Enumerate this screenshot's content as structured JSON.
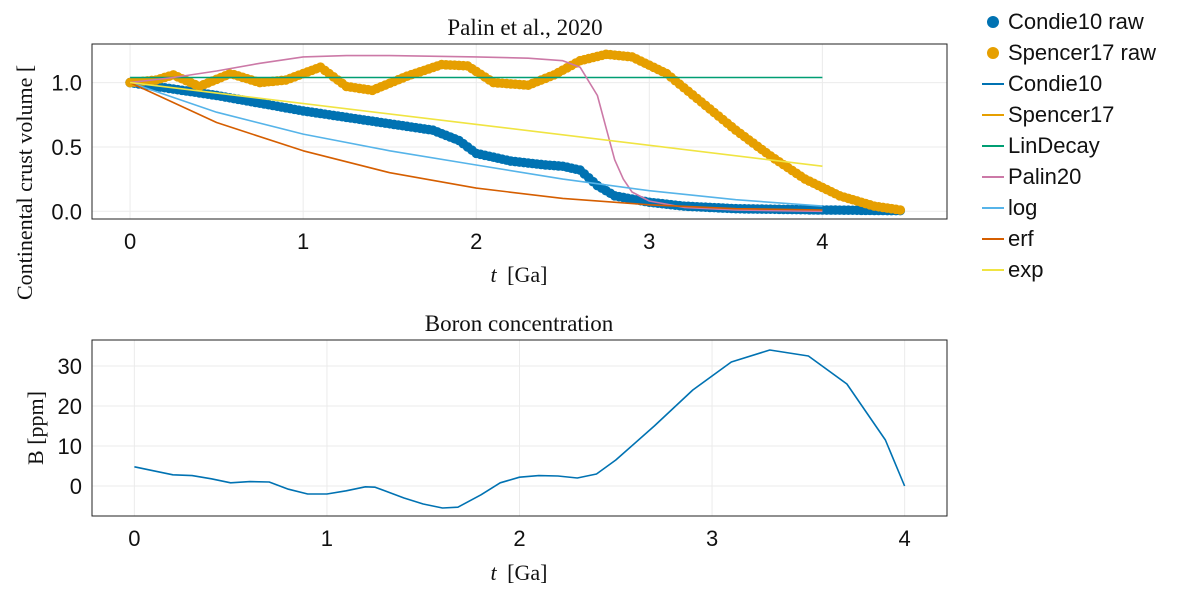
{
  "chart_data": [
    {
      "type": "line",
      "title": "Palin et al., 2020",
      "xlabel_var": "t",
      "xlabel_unit": "[Ga]",
      "ylabel": "Continental crust volume [",
      "xlim": [
        -0.22,
        4.72
      ],
      "ylim": [
        -0.06,
        1.3
      ],
      "xticks": [
        0,
        1,
        2,
        3,
        4
      ],
      "xtick_labels": [
        "0",
        "1",
        "2",
        "3",
        "4"
      ],
      "yticks": [
        0.0,
        0.5,
        1.0
      ],
      "ytick_labels": [
        "0.0",
        "0.5",
        "1.0"
      ],
      "grid": true,
      "legend_position": "right",
      "series": [
        {
          "name": "Condie10 raw",
          "kind": "scatter",
          "color": "#0072b2",
          "x": [
            0,
            0.25,
            0.5,
            0.75,
            1.0,
            1.25,
            1.5,
            1.75,
            1.9,
            2.0,
            2.2,
            2.4,
            2.5,
            2.6,
            2.7,
            2.8,
            3.0,
            3.2,
            3.5,
            4.0,
            4.45
          ],
          "y": [
            1.0,
            0.95,
            0.9,
            0.84,
            0.78,
            0.73,
            0.68,
            0.63,
            0.55,
            0.45,
            0.39,
            0.36,
            0.35,
            0.32,
            0.2,
            0.12,
            0.07,
            0.04,
            0.02,
            0.01,
            0.005
          ]
        },
        {
          "name": "Spencer17 raw",
          "kind": "scatter",
          "color": "#e69f00",
          "x": [
            0,
            0.15,
            0.25,
            0.4,
            0.58,
            0.75,
            0.9,
            1.1,
            1.25,
            1.4,
            1.6,
            1.8,
            1.95,
            2.1,
            2.3,
            2.45,
            2.6,
            2.75,
            2.9,
            3.1,
            3.3,
            3.5,
            3.7,
            3.9,
            4.1,
            4.3,
            4.45
          ],
          "y": [
            1.0,
            1.02,
            1.06,
            0.97,
            1.07,
            1.0,
            1.02,
            1.12,
            0.97,
            0.94,
            1.05,
            1.14,
            1.13,
            1.0,
            0.98,
            1.06,
            1.17,
            1.22,
            1.2,
            1.07,
            0.85,
            0.63,
            0.43,
            0.25,
            0.12,
            0.04,
            0.01
          ]
        },
        {
          "name": "Condie10",
          "kind": "line",
          "color": "#0072b2",
          "x": [
            0,
            0.25,
            0.5,
            0.75,
            1.0,
            1.25,
            1.5,
            1.75,
            1.9,
            2.0,
            2.2,
            2.4,
            2.5,
            2.6,
            2.7,
            2.8,
            3.0,
            3.2,
            3.5,
            4.0
          ],
          "y": [
            1.0,
            0.95,
            0.9,
            0.84,
            0.78,
            0.73,
            0.68,
            0.63,
            0.55,
            0.45,
            0.39,
            0.36,
            0.35,
            0.32,
            0.2,
            0.12,
            0.07,
            0.04,
            0.02,
            0.01
          ]
        },
        {
          "name": "Spencer17",
          "kind": "line",
          "color": "#e69f00",
          "x": [
            0,
            0.15,
            0.25,
            0.4,
            0.58,
            0.75,
            0.9,
            1.1,
            1.25,
            1.4,
            1.6,
            1.8,
            1.95,
            2.1,
            2.3,
            2.45,
            2.6,
            2.75,
            2.9,
            3.1,
            3.3,
            3.5,
            3.7,
            3.9,
            4.0
          ],
          "y": [
            1.0,
            1.02,
            1.06,
            0.97,
            1.07,
            1.0,
            1.02,
            1.12,
            0.97,
            0.94,
            1.05,
            1.14,
            1.13,
            1.0,
            0.98,
            1.06,
            1.17,
            1.22,
            1.2,
            1.07,
            0.85,
            0.63,
            0.43,
            0.25,
            0.2
          ]
        },
        {
          "name": "LinDecay",
          "kind": "line",
          "color": "#009e73",
          "x": [
            0,
            4.0
          ],
          "y": [
            1.04,
            1.04
          ]
        },
        {
          "name": "Palin20",
          "kind": "line",
          "color": "#cc79a7",
          "x": [
            0,
            0.25,
            0.5,
            0.75,
            1.0,
            1.25,
            1.5,
            2.0,
            2.3,
            2.5,
            2.6,
            2.7,
            2.75,
            2.8,
            2.85,
            2.9,
            3.0,
            3.2,
            3.5,
            4.0
          ],
          "y": [
            1.0,
            1.04,
            1.09,
            1.15,
            1.2,
            1.21,
            1.21,
            1.2,
            1.19,
            1.17,
            1.12,
            0.9,
            0.65,
            0.4,
            0.25,
            0.15,
            0.08,
            0.03,
            0.01,
            0.0
          ]
        },
        {
          "name": "log",
          "kind": "line",
          "color": "#56b4e9",
          "x": [
            0,
            0.5,
            1.0,
            1.5,
            2.0,
            2.5,
            3.0,
            3.5,
            4.0
          ],
          "y": [
            1.0,
            0.77,
            0.6,
            0.47,
            0.36,
            0.25,
            0.16,
            0.09,
            0.04
          ]
        },
        {
          "name": "erf",
          "kind": "line",
          "color": "#d55e00",
          "x": [
            0,
            0.5,
            1.0,
            1.5,
            2.0,
            2.5,
            3.0,
            3.5,
            4.0
          ],
          "y": [
            1.0,
            0.69,
            0.47,
            0.3,
            0.18,
            0.1,
            0.05,
            0.02,
            0.01
          ]
        },
        {
          "name": "exp",
          "kind": "line",
          "color": "#f0e442",
          "x": [
            0,
            4.0
          ],
          "y": [
            1.0,
            0.35
          ]
        }
      ]
    },
    {
      "type": "line",
      "title": "Boron concentration",
      "xlabel_var": "t",
      "xlabel_unit": "[Ga]",
      "ylabel": "B [ppm]",
      "xlim": [
        -0.22,
        4.22
      ],
      "ylim": [
        -7.5,
        36.5
      ],
      "xticks": [
        0,
        1,
        2,
        3,
        4
      ],
      "xtick_labels": [
        "0",
        "1",
        "2",
        "3",
        "4"
      ],
      "yticks": [
        0,
        10,
        20,
        30
      ],
      "ytick_labels": [
        "0",
        "10",
        "20",
        "30"
      ],
      "grid": true,
      "series": [
        {
          "color": "#0072b2",
          "x": [
            0,
            0.1,
            0.2,
            0.3,
            0.4,
            0.5,
            0.6,
            0.7,
            0.8,
            0.9,
            1.0,
            1.1,
            1.2,
            1.25,
            1.3,
            1.4,
            1.5,
            1.6,
            1.68,
            1.8,
            1.9,
            2.0,
            2.1,
            2.2,
            2.3,
            2.4,
            2.5,
            2.7,
            2.9,
            3.1,
            3.3,
            3.5,
            3.7,
            3.9,
            4.0
          ],
          "y": [
            4.8,
            3.8,
            2.8,
            2.6,
            1.8,
            0.8,
            1.1,
            1.0,
            -0.8,
            -2.0,
            -2.0,
            -1.2,
            -0.2,
            -0.3,
            -1.2,
            -3.0,
            -4.5,
            -5.5,
            -5.3,
            -2.2,
            0.8,
            2.2,
            2.6,
            2.5,
            2.0,
            3.0,
            6.5,
            15.0,
            24.0,
            31.0,
            34.0,
            32.5,
            25.5,
            11.5,
            0.0
          ]
        }
      ]
    }
  ]
}
